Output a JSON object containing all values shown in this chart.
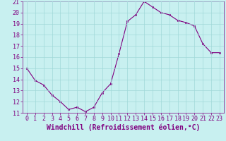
{
  "x": [
    0,
    1,
    2,
    3,
    4,
    5,
    6,
    7,
    8,
    9,
    10,
    11,
    12,
    13,
    14,
    15,
    16,
    17,
    18,
    19,
    20,
    21,
    22,
    23
  ],
  "y": [
    15.0,
    13.9,
    13.5,
    12.6,
    12.0,
    11.3,
    11.5,
    11.1,
    11.5,
    12.8,
    13.6,
    16.3,
    19.2,
    19.8,
    21.0,
    20.5,
    20.0,
    19.8,
    19.3,
    19.1,
    18.8,
    17.2,
    16.4,
    16.4
  ],
  "line_color": "#800080",
  "marker": "s",
  "marker_size": 2,
  "bg_color": "#c8f0f0",
  "grid_color": "#a0d8d8",
  "xlabel": "Windchill (Refroidissement éolien,°C)",
  "xlabel_fontsize": 7,
  "ylim": [
    11,
    21
  ],
  "xlim": [
    -0.5,
    23.5
  ],
  "yticks": [
    11,
    12,
    13,
    14,
    15,
    16,
    17,
    18,
    19,
    20,
    21
  ],
  "xticks": [
    0,
    1,
    2,
    3,
    4,
    5,
    6,
    7,
    8,
    9,
    10,
    11,
    12,
    13,
    14,
    15,
    16,
    17,
    18,
    19,
    20,
    21,
    22,
    23
  ],
  "tick_fontsize": 6,
  "tick_color": "#800080",
  "axis_color": "#800080"
}
